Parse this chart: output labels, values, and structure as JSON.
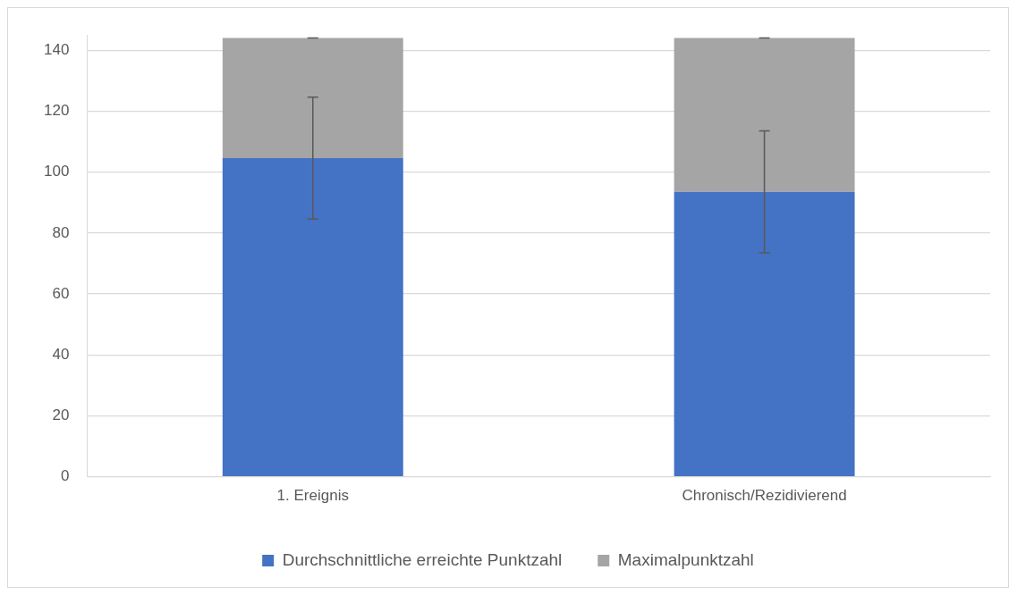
{
  "chart_data": {
    "type": "bar",
    "stacked": true,
    "categories": [
      "1. Ereignis",
      "Chronisch/Rezidivierend"
    ],
    "series": [
      {
        "name": "Durchschnittliche erreichte Punktzahl",
        "color": "#4472c4",
        "values": [
          104.6,
          93.5
        ],
        "errors": [
          20,
          20
        ]
      },
      {
        "name": "Maximalpunktzahl",
        "color": "#a5a5a5",
        "values": [
          39.4,
          50.5
        ],
        "errors": [
          0,
          0
        ]
      }
    ],
    "ylim": [
      0,
      145
    ],
    "yticks": [
      0,
      20,
      40,
      60,
      80,
      100,
      120,
      140
    ],
    "grid": "y",
    "legend": "bottom"
  }
}
